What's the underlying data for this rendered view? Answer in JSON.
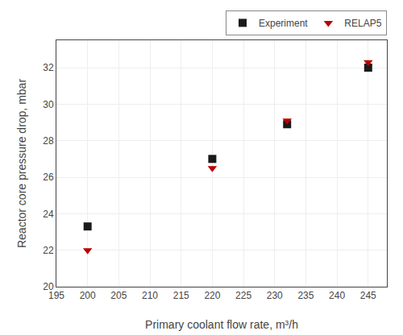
{
  "chart_data": {
    "type": "scatter",
    "xlabel": "Primary coolant flow rate, m³/h",
    "ylabel": "Reactor core pressure drop, mbar",
    "x": [
      200,
      220,
      232,
      245
    ],
    "series": [
      {
        "name": "Experiment",
        "color": "#1a1a1a",
        "marker": "square",
        "values": [
          23.3,
          27.0,
          28.9,
          32.0
        ]
      },
      {
        "name": "RELAP5",
        "color": "#bb0000",
        "marker": "triangle-down",
        "values": [
          22.0,
          26.5,
          29.1,
          32.3
        ]
      }
    ],
    "xlim": [
      195,
      248
    ],
    "xticks": [
      195,
      200,
      205,
      210,
      215,
      220,
      225,
      230,
      235,
      240,
      245
    ],
    "ylim": [
      20,
      33.5
    ],
    "yticks": [
      20,
      22,
      24,
      26,
      28,
      30,
      32
    ],
    "grid": true,
    "legend": "upper right"
  }
}
